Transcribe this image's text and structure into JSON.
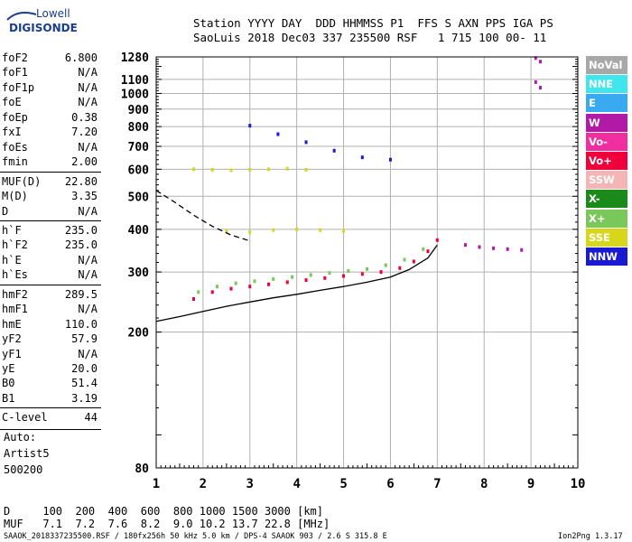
{
  "logo": {
    "line1": "Lowell",
    "line2": "DIGISONDE"
  },
  "header": {
    "line1": "Station YYYY DAY  DDD HHMMSS P1  FFS S AXN PPS IGA PS",
    "line2": "SaoLuis 2018 Dec03 337 235500 RSF   1 715 100 00- 11"
  },
  "params": [
    {
      "name": "foF2",
      "value": "6.800"
    },
    {
      "name": "foF1",
      "value": "N/A"
    },
    {
      "name": "foF1p",
      "value": "N/A"
    },
    {
      "name": "foE",
      "value": "N/A"
    },
    {
      "name": "foEp",
      "value": "0.38"
    },
    {
      "name": "fxI",
      "value": "7.20"
    },
    {
      "name": "foEs",
      "value": "N/A"
    },
    {
      "name": "fmin",
      "value": "2.00"
    },
    {
      "name": "MUF(D)",
      "value": "22.80"
    },
    {
      "name": "M(D)",
      "value": "3.35"
    },
    {
      "name": "D",
      "value": "N/A"
    },
    {
      "name": "h`F",
      "value": "235.0"
    },
    {
      "name": "h`F2",
      "value": "235.0"
    },
    {
      "name": "h`E",
      "value": "N/A"
    },
    {
      "name": "h`Es",
      "value": "N/A"
    },
    {
      "name": "hmF2",
      "value": "289.5"
    },
    {
      "name": "hmF1",
      "value": "N/A"
    },
    {
      "name": "hmE",
      "value": "110.0"
    },
    {
      "name": "yF2",
      "value": "57.9"
    },
    {
      "name": "yF1",
      "value": "N/A"
    },
    {
      "name": "yE",
      "value": "20.0"
    },
    {
      "name": "B0",
      "value": "51.4"
    },
    {
      "name": "B1",
      "value": "3.19"
    },
    {
      "name": "C-level",
      "value": "44"
    }
  ],
  "autoscaling": {
    "line1": "Auto:",
    "line2": "Artist5",
    "line3": "500200"
  },
  "footer": {
    "d_line": "D     100  200  400  600  800 1000 1500 3000 [km]",
    "muf_line": "MUF   7.1  7.2  7.6  8.2  9.0 10.2 13.7 22.8 [MHz]",
    "file_line": "SAAOK_2018337235500.RSF / 180fx256h 50 kHz 5.0 km / DPS-4 SAAOK 903 / 2.6 S 315.8 E",
    "version": "Ion2Png 1.3.17"
  },
  "legend": [
    {
      "label": "NoVal",
      "color": "#a8a8a8"
    },
    {
      "label": "NNE",
      "color": "#3fe6ee"
    },
    {
      "label": "E",
      "color": "#3aaaf0"
    },
    {
      "label": "W",
      "color": "#b01aa6"
    },
    {
      "label": "Vo-",
      "color": "#f02ea0"
    },
    {
      "label": "Vo+",
      "color": "#f0003a"
    },
    {
      "label": "SSW",
      "color": "#f5b5b5"
    },
    {
      "label": "X-",
      "color": "#1a8a1a"
    },
    {
      "label": "X+",
      "color": "#7ac85a"
    },
    {
      "label": "SSE",
      "color": "#d6d61a"
    },
    {
      "label": "NNW",
      "color": "#1a1ad0"
    }
  ],
  "chart_data": {
    "type": "scatter",
    "xlabel": "",
    "ylabel": "",
    "xlim": [
      1,
      10
    ],
    "ylim": [
      80,
      1280
    ],
    "y_scale": "log",
    "xticks": [
      "1",
      "2",
      "3",
      "4",
      "5",
      "6",
      "7",
      "8",
      "9",
      "10"
    ],
    "yticks": [
      "80",
      "200",
      "300",
      "400",
      "500",
      "600",
      "700",
      "800",
      "900",
      "1000",
      "1100",
      "1280"
    ],
    "grid": true,
    "legend_position": "right",
    "series": [
      {
        "name": "Vo+",
        "points": [
          [
            1.8,
            250
          ],
          [
            2.2,
            262
          ],
          [
            2.6,
            268
          ],
          [
            3.0,
            272
          ],
          [
            3.4,
            276
          ],
          [
            3.8,
            280
          ],
          [
            4.2,
            284
          ],
          [
            4.6,
            288
          ],
          [
            5.0,
            292
          ],
          [
            5.4,
            296
          ],
          [
            5.8,
            300
          ],
          [
            6.2,
            308
          ],
          [
            6.5,
            322
          ],
          [
            6.8,
            345
          ],
          [
            7.0,
            372
          ]
        ]
      },
      {
        "name": "X+",
        "points": [
          [
            1.9,
            262
          ],
          [
            2.3,
            272
          ],
          [
            2.7,
            278
          ],
          [
            3.1,
            282
          ],
          [
            3.5,
            286
          ],
          [
            3.9,
            290
          ],
          [
            4.3,
            294
          ],
          [
            4.7,
            298
          ],
          [
            5.1,
            302
          ],
          [
            5.5,
            306
          ],
          [
            5.9,
            314
          ],
          [
            6.3,
            326
          ],
          [
            6.7,
            350
          ]
        ]
      },
      {
        "name": "SSE",
        "points": [
          [
            1.8,
            600
          ],
          [
            2.2,
            598
          ],
          [
            2.6,
            596
          ],
          [
            3.0,
            598
          ],
          [
            3.4,
            600
          ],
          [
            3.8,
            602
          ],
          [
            4.2,
            598
          ],
          [
            2.5,
            395
          ],
          [
            3.0,
            392
          ],
          [
            3.5,
            398
          ],
          [
            4.0,
            400
          ],
          [
            4.5,
            398
          ],
          [
            5.0,
            396
          ]
        ]
      },
      {
        "name": "W",
        "points": [
          [
            7.6,
            360
          ],
          [
            7.9,
            355
          ],
          [
            8.2,
            352
          ],
          [
            8.5,
            350
          ],
          [
            8.8,
            348
          ],
          [
            9.1,
            1080
          ],
          [
            9.2,
            1040
          ],
          [
            9.1,
            1270
          ],
          [
            9.2,
            1240
          ]
        ]
      },
      {
        "name": "NNW",
        "points": [
          [
            3.0,
            805
          ],
          [
            3.6,
            760
          ],
          [
            4.2,
            720
          ],
          [
            4.8,
            680
          ],
          [
            5.4,
            650
          ],
          [
            6.0,
            640
          ]
        ]
      }
    ],
    "model_curves": [
      {
        "name": "profile",
        "points": [
          [
            1,
            215
          ],
          [
            1.5,
            222
          ],
          [
            2,
            230
          ],
          [
            2.5,
            238
          ],
          [
            3,
            245
          ],
          [
            3.5,
            252
          ],
          [
            4,
            258
          ],
          [
            4.5,
            265
          ],
          [
            5,
            272
          ],
          [
            5.5,
            280
          ],
          [
            6,
            290
          ],
          [
            6.4,
            305
          ],
          [
            6.8,
            330
          ],
          [
            7.0,
            360
          ]
        ]
      },
      {
        "name": "dashed",
        "points": [
          [
            1,
            520
          ],
          [
            1.4,
            480
          ],
          [
            1.8,
            440
          ],
          [
            2.2,
            408
          ],
          [
            2.6,
            385
          ],
          [
            3.0,
            370
          ]
        ]
      }
    ]
  }
}
